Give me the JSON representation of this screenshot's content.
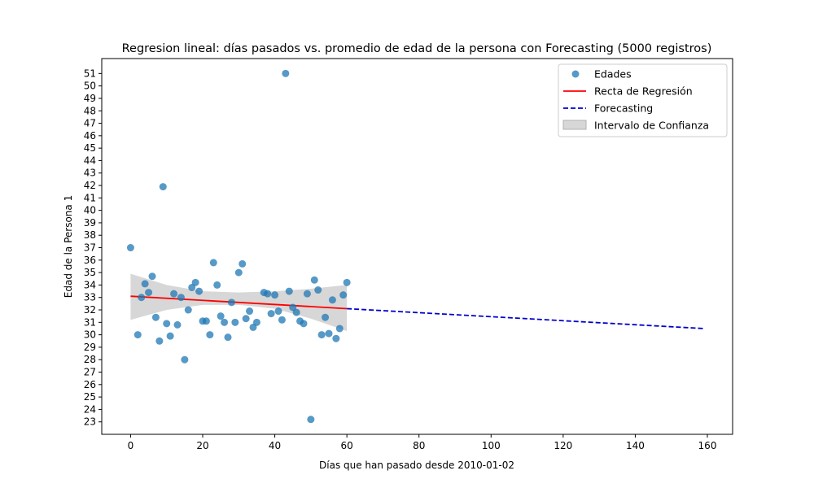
{
  "chart_data": {
    "type": "scatter",
    "title": "Regresion lineal: días pasados vs. promedio de edad de la persona con Forecasting (5000 registros)",
    "xlabel": "Días que han pasado desde 2010-01-02",
    "ylabel": "Edad de la Persona 1",
    "xlim": [
      -8,
      167
    ],
    "ylim": [
      22,
      52.2
    ],
    "xticks": [
      0,
      20,
      40,
      60,
      80,
      100,
      120,
      140,
      160
    ],
    "yticks": [
      23,
      24,
      25,
      26,
      27,
      28,
      29,
      30,
      31,
      32,
      33,
      34,
      35,
      36,
      37,
      38,
      39,
      40,
      41,
      42,
      43,
      44,
      45,
      46,
      47,
      48,
      49,
      50,
      51
    ],
    "grid": false,
    "legend_position": "top-right",
    "colors": {
      "points": "#1f77b4",
      "regression": "#ff0000",
      "forecast": "#0000cc",
      "confidence": "#b0b0b0"
    },
    "series": [
      {
        "name": "Edades",
        "kind": "scatter",
        "points": [
          [
            0,
            37.0
          ],
          [
            2,
            30.0
          ],
          [
            3,
            33.0
          ],
          [
            4,
            34.1
          ],
          [
            5,
            33.4
          ],
          [
            6,
            34.7
          ],
          [
            7,
            31.4
          ],
          [
            8,
            29.5
          ],
          [
            9,
            41.9
          ],
          [
            10,
            30.9
          ],
          [
            11,
            29.9
          ],
          [
            12,
            33.3
          ],
          [
            13,
            30.8
          ],
          [
            14,
            33.0
          ],
          [
            15,
            28.0
          ],
          [
            16,
            32.0
          ],
          [
            17,
            33.8
          ],
          [
            18,
            34.2
          ],
          [
            19,
            33.5
          ],
          [
            20,
            31.1
          ],
          [
            21,
            31.1
          ],
          [
            22,
            30.0
          ],
          [
            23,
            35.8
          ],
          [
            24,
            34.0
          ],
          [
            25,
            31.5
          ],
          [
            26,
            31.0
          ],
          [
            27,
            29.8
          ],
          [
            28,
            32.6
          ],
          [
            29,
            31.0
          ],
          [
            30,
            35.0
          ],
          [
            31,
            35.7
          ],
          [
            32,
            31.3
          ],
          [
            33,
            31.9
          ],
          [
            34,
            30.6
          ],
          [
            35,
            31.0
          ],
          [
            37,
            33.4
          ],
          [
            38,
            33.3
          ],
          [
            39,
            31.7
          ],
          [
            40,
            33.2
          ],
          [
            41,
            31.9
          ],
          [
            42,
            31.2
          ],
          [
            43,
            51.0
          ],
          [
            44,
            33.5
          ],
          [
            45,
            32.2
          ],
          [
            46,
            31.8
          ],
          [
            47,
            31.1
          ],
          [
            48,
            30.9
          ],
          [
            49,
            33.3
          ],
          [
            50,
            23.2
          ],
          [
            51,
            34.4
          ],
          [
            52,
            33.6
          ],
          [
            53,
            30.0
          ],
          [
            54,
            31.4
          ],
          [
            55,
            30.1
          ],
          [
            56,
            32.8
          ],
          [
            57,
            29.7
          ],
          [
            58,
            30.5
          ],
          [
            59,
            33.2
          ],
          [
            60,
            34.2
          ]
        ]
      },
      {
        "name": "Recta de Regresión",
        "kind": "line",
        "points": [
          [
            0,
            33.1
          ],
          [
            60,
            32.1
          ]
        ]
      },
      {
        "name": "Forecasting",
        "kind": "dashed-line",
        "points": [
          [
            60,
            32.1
          ],
          [
            159,
            30.5
          ]
        ]
      },
      {
        "name": "Intervalo de Confianza",
        "kind": "band",
        "upper": [
          [
            0,
            34.9
          ],
          [
            10,
            34.0
          ],
          [
            20,
            33.5
          ],
          [
            30,
            33.4
          ],
          [
            40,
            33.5
          ],
          [
            50,
            33.7
          ],
          [
            60,
            34.0
          ]
        ],
        "lower": [
          [
            0,
            31.2
          ],
          [
            10,
            32.0
          ],
          [
            20,
            32.4
          ],
          [
            30,
            32.4
          ],
          [
            40,
            32.1
          ],
          [
            50,
            31.3
          ],
          [
            60,
            30.3
          ]
        ]
      }
    ]
  }
}
